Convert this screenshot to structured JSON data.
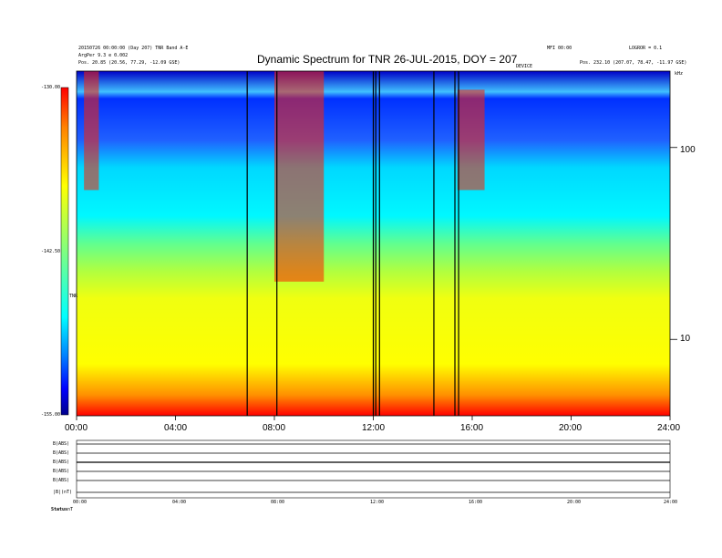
{
  "header": {
    "title": "Dynamic Spectrum for TNR 26-JUL-2015, DOY = 207",
    "left_line1": "20150726 00:00:00 (Day 207)  TNR Band A-E",
    "left_line2": "ArgPer 9.3  e 0.002",
    "left_line3": "Pos.  20.85 (20.56, 77.29, -12.09 GSE)",
    "right_line1": "LOGROR = 0.1",
    "right_line2": "Pos.  232.10 (207.07, 78.47, -11.97 GSE)",
    "mid_right": "MFI 00:00",
    "mid_right2": "DEVICE",
    "freq_unit": "kHz"
  },
  "colorbar": {
    "ticks": [
      "-130.00",
      "-142.50",
      "-155.00"
    ],
    "label": "TNR"
  },
  "chart_data": {
    "type": "heatmap",
    "title": "Dynamic Spectrum for TNR 26-JUL-2015, DOY = 207",
    "x_ticks": [
      "00:00",
      "04:00",
      "08:00",
      "12:00",
      "16:00",
      "20:00",
      "24:00"
    ],
    "x_range": [
      0,
      24
    ],
    "y_ticks": [
      "100",
      "10"
    ],
    "y_scale": "log",
    "y_range": [
      4,
      250
    ],
    "colorbar_range": [
      -155.0,
      -130.0
    ],
    "vertical_lines_hours": [
      6.9,
      8.1,
      12.0,
      12.1,
      12.25,
      14.45,
      15.3,
      15.45
    ],
    "bursts": [
      {
        "start": 0.3,
        "end": 0.9,
        "fmin": 60,
        "fmax": 250
      },
      {
        "start": 8.0,
        "end": 10.0,
        "fmin": 20,
        "fmax": 250
      },
      {
        "start": 15.4,
        "end": 16.5,
        "fmin": 60,
        "fmax": 200
      }
    ],
    "colors": [
      "#00008c",
      "#0000ff",
      "#0080ff",
      "#00ffff",
      "#80ff80",
      "#ffff00",
      "#ff8000",
      "#ff0000",
      "#800000"
    ]
  },
  "panels": {
    "labels": [
      "B(ABS)",
      "B(ABS)",
      "B(ABS)",
      "B(ABS)",
      "B(ABS)",
      "|B|(nT)"
    ],
    "bottom_labels": [
      "Status",
      "nT"
    ],
    "x_ticks": [
      "00:00",
      "04:00",
      "08:00",
      "12:00",
      "16:00",
      "20:00",
      "24:00"
    ]
  }
}
